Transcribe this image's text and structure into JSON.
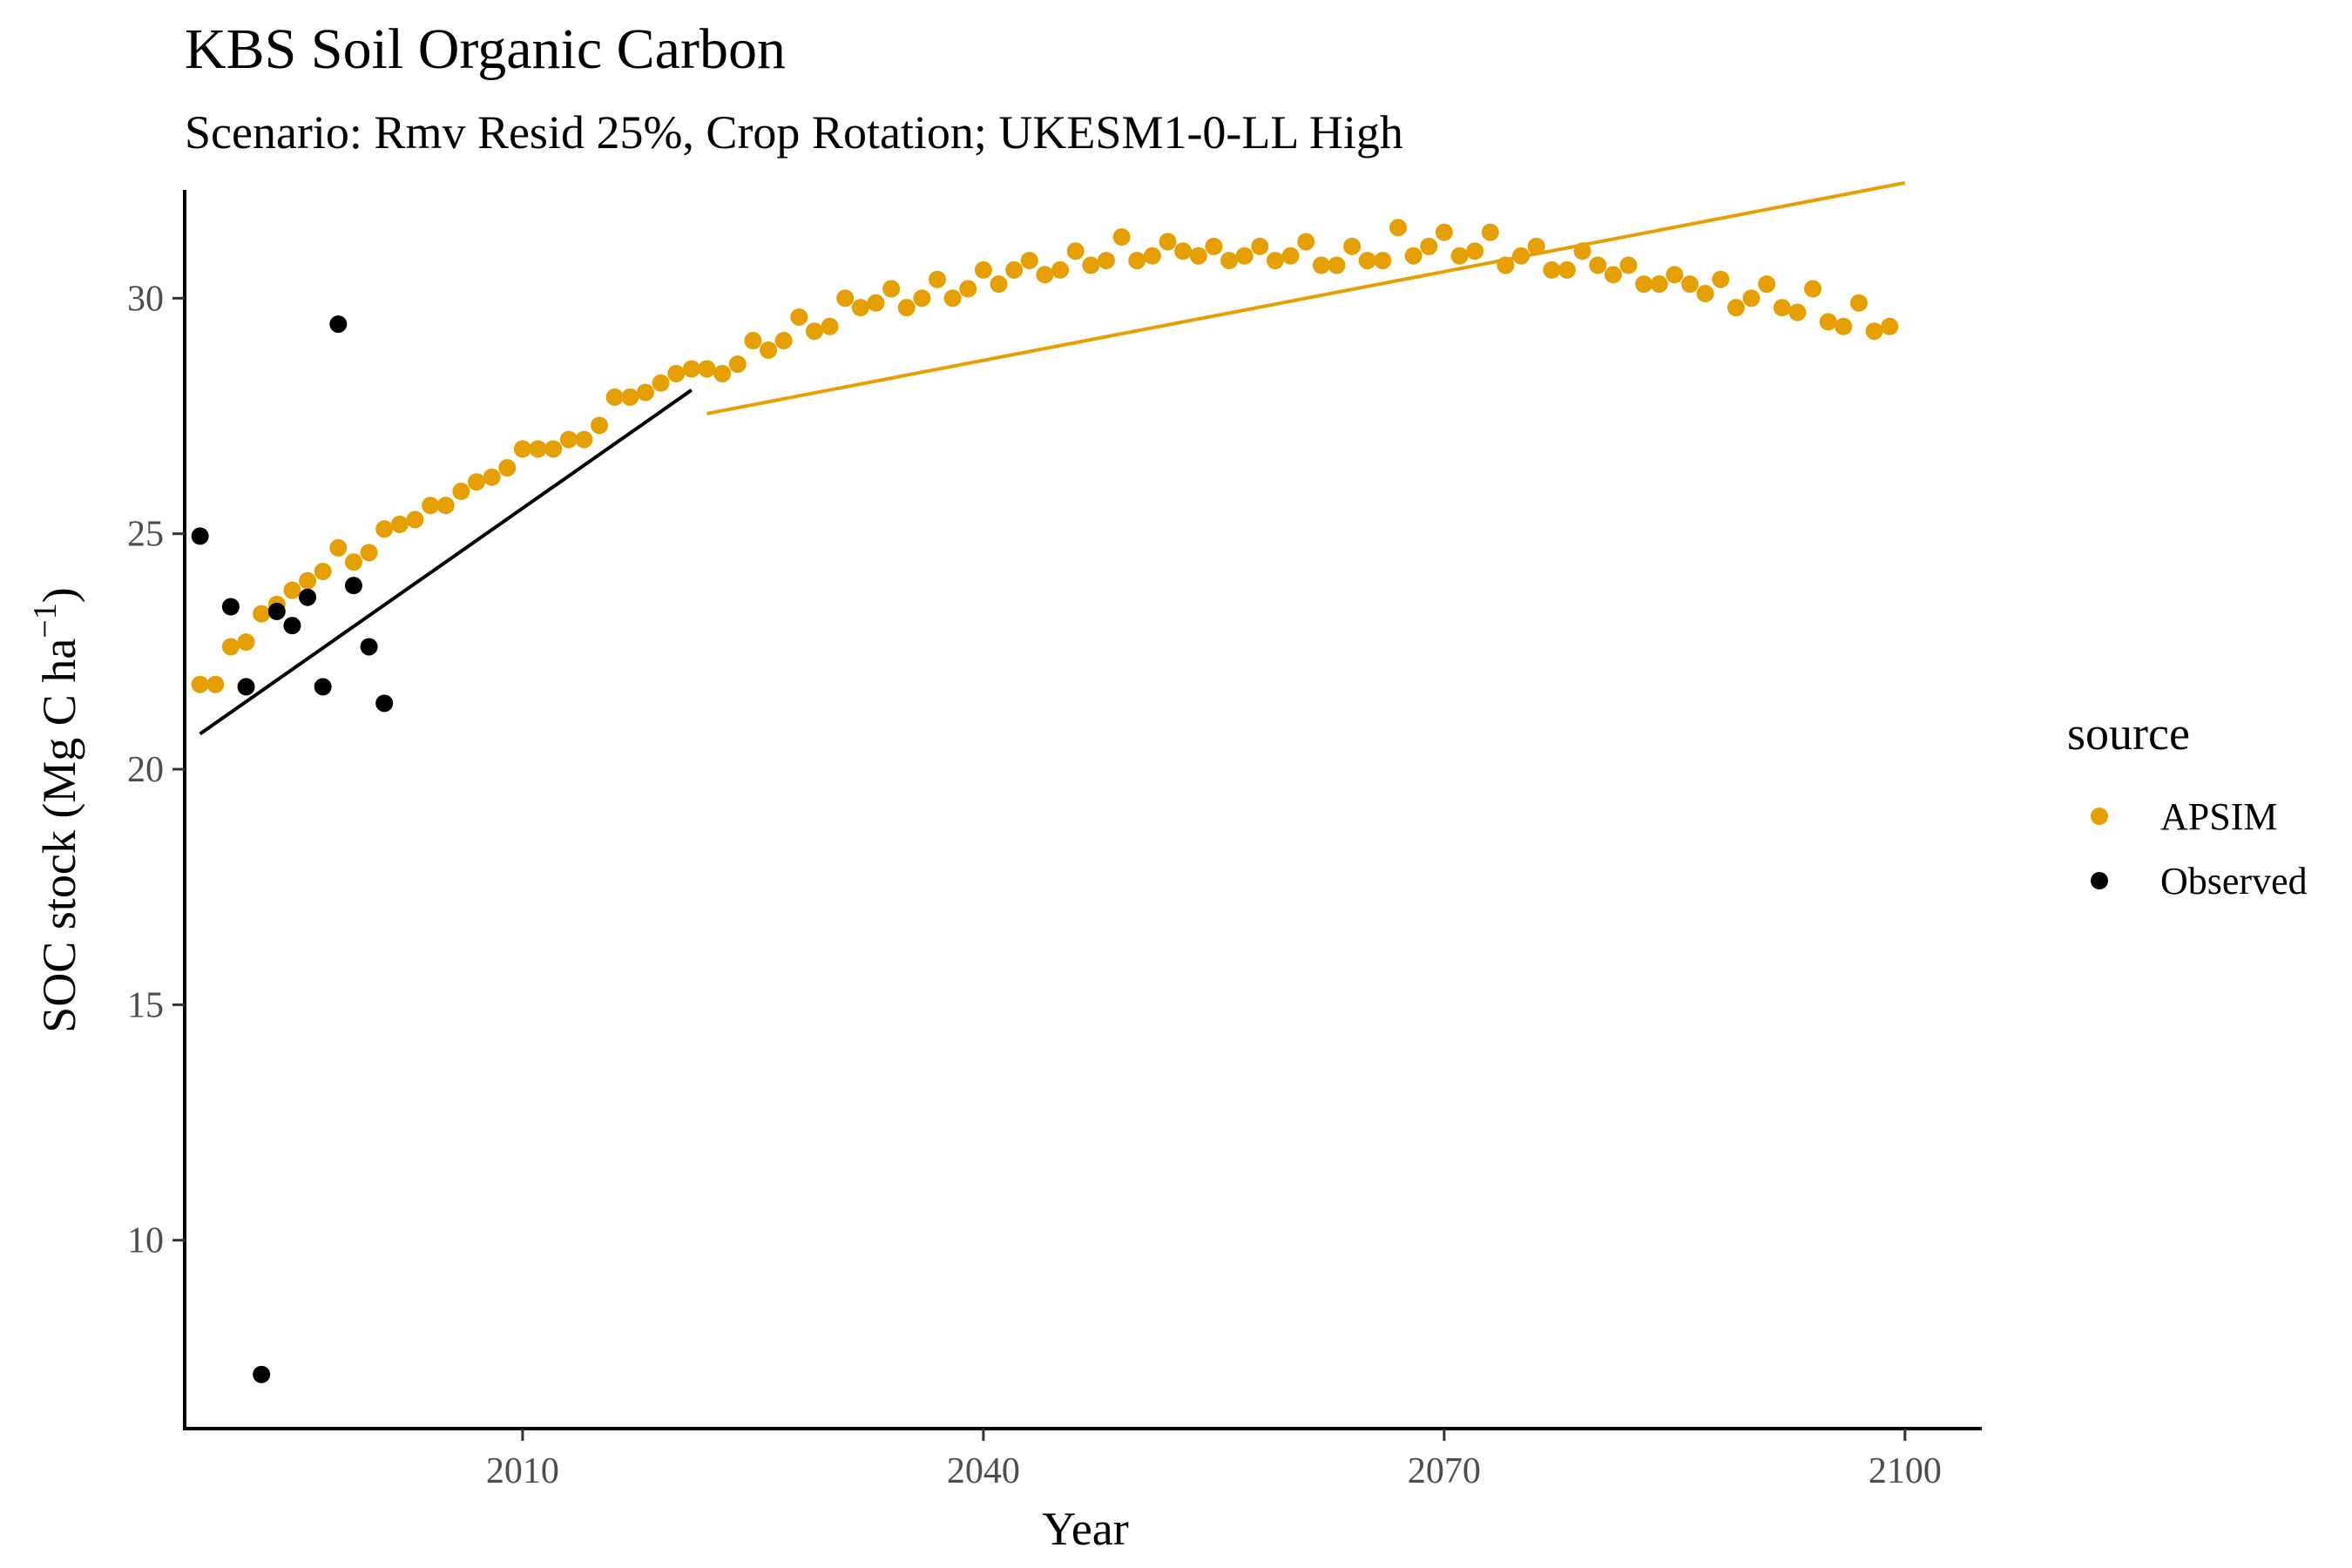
{
  "chart_data": {
    "type": "scatter",
    "title": "KBS Soil Organic Carbon",
    "subtitle": "Scenario: Rmv Resid 25%, Crop Rotation; UKESM1-0-LL High",
    "xlabel": "Year",
    "ylabel_main": "SOC stock (Mg C ha",
    "ylabel_sup": "−1",
    "ylabel_close": ")",
    "xlim": [
      1988,
      2105
    ],
    "ylim": [
      6.0,
      32.3
    ],
    "x_ticks": [
      2010,
      2040,
      2070,
      2100
    ],
    "x_tick_labels": [
      "2010",
      "2040",
      "2070",
      "2100"
    ],
    "y_ticks": [
      10,
      15,
      20,
      25,
      30
    ],
    "y_tick_labels": [
      "10",
      "15",
      "20",
      "25",
      "30"
    ],
    "grid": false,
    "legend": {
      "title": "source",
      "position": "right",
      "entries": [
        {
          "label": "APSIM",
          "color": "#E69F00"
        },
        {
          "label": "Observed",
          "color": "#000000"
        }
      ]
    },
    "series": [
      {
        "name": "APSIM",
        "color": "#E69F00",
        "x": [
          1989,
          1990,
          1991,
          1992,
          1993,
          1994,
          1995,
          1996,
          1997,
          1998,
          1999,
          2000,
          2001,
          2002,
          2003,
          2004,
          2005,
          2006,
          2007,
          2008,
          2009,
          2010,
          2011,
          2012,
          2013,
          2014,
          2015,
          2016,
          2017,
          2018,
          2019,
          2020,
          2021,
          2022,
          2023,
          2024,
          2025,
          2026,
          2027,
          2028,
          2029,
          2030,
          2031,
          2032,
          2033,
          2034,
          2035,
          2036,
          2037,
          2038,
          2039,
          2040,
          2041,
          2042,
          2043,
          2044,
          2045,
          2046,
          2047,
          2048,
          2049,
          2050,
          2051,
          2052,
          2053,
          2054,
          2055,
          2056,
          2057,
          2058,
          2059,
          2060,
          2061,
          2062,
          2063,
          2064,
          2065,
          2066,
          2067,
          2068,
          2069,
          2070,
          2071,
          2072,
          2073,
          2074,
          2075,
          2076,
          2077,
          2078,
          2079,
          2080,
          2081,
          2082,
          2083,
          2084,
          2085,
          2086,
          2087,
          2088,
          2089,
          2090,
          2091,
          2092,
          2093,
          2094,
          2095,
          2096,
          2097,
          2098,
          2099
        ],
        "y": [
          21.8,
          21.8,
          22.6,
          22.7,
          23.3,
          23.5,
          23.8,
          24.0,
          24.2,
          24.7,
          24.4,
          24.6,
          25.1,
          25.2,
          25.3,
          25.6,
          25.6,
          25.9,
          26.1,
          26.2,
          26.4,
          26.8,
          26.8,
          26.8,
          27.0,
          27.0,
          27.3,
          27.9,
          27.9,
          28.0,
          28.2,
          28.4,
          28.5,
          28.5,
          28.4,
          28.6,
          29.1,
          28.9,
          29.1,
          29.6,
          29.3,
          29.4,
          30.0,
          29.8,
          29.9,
          30.2,
          29.8,
          30.0,
          30.4,
          30.0,
          30.2,
          30.6,
          30.3,
          30.6,
          30.8,
          30.5,
          30.6,
          31.0,
          30.7,
          30.8,
          31.3,
          30.8,
          30.9,
          31.2,
          31.0,
          30.9,
          31.1,
          30.8,
          30.9,
          31.1,
          30.8,
          30.9,
          31.2,
          30.7,
          30.7,
          31.1,
          30.8,
          30.8,
          31.5,
          30.9,
          31.1,
          31.4,
          30.9,
          31.0,
          31.4,
          30.7,
          30.9,
          31.1,
          30.6,
          30.6,
          31.0,
          30.7,
          30.5,
          30.7,
          30.3,
          30.3,
          30.5,
          30.3,
          30.1,
          30.4,
          29.8,
          30.0,
          30.3,
          29.8,
          29.7,
          30.2,
          29.5,
          29.4,
          29.9,
          29.3,
          29.4
        ]
      },
      {
        "name": "Observed",
        "color": "#000000",
        "x": [
          1989,
          1991,
          1992,
          1993,
          1994,
          1995,
          1996,
          1997,
          1998,
          1999,
          2000,
          2001
        ],
        "y": [
          24.95,
          23.45,
          21.75,
          7.15,
          23.35,
          23.05,
          23.65,
          21.75,
          29.45,
          23.9,
          22.6,
          21.4
        ]
      }
    ],
    "trend_lines": [
      {
        "series": "Observed",
        "color": "#000000",
        "x": [
          1989,
          2021
        ],
        "y": [
          20.75,
          28.05
        ]
      },
      {
        "series": "APSIM",
        "color": "#E69F00",
        "x": [
          2022,
          2100
        ],
        "y": [
          27.55,
          32.45
        ]
      }
    ]
  }
}
